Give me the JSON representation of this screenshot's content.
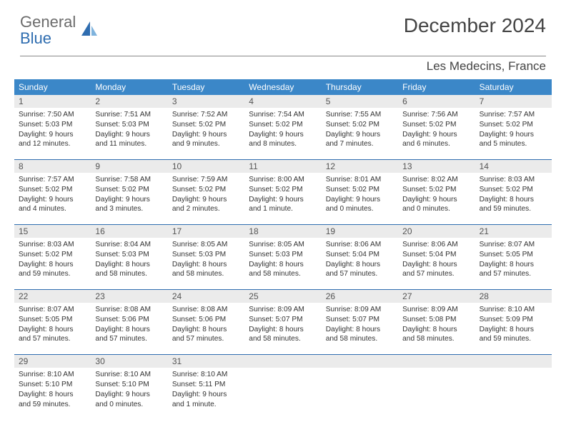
{
  "brand": {
    "general": "General",
    "blue": "Blue"
  },
  "title": "December 2024",
  "location": "Les Medecins, France",
  "colors": {
    "header_bar": "#3b87c8",
    "week_border": "#2f6db0",
    "daynum_bg": "#ebebeb",
    "text": "#333333",
    "logo_grey": "#6b6b6b",
    "logo_blue": "#2f6db0"
  },
  "weekdays": [
    "Sunday",
    "Monday",
    "Tuesday",
    "Wednesday",
    "Thursday",
    "Friday",
    "Saturday"
  ],
  "weeks": [
    [
      {
        "n": "1",
        "sunrise": "Sunrise: 7:50 AM",
        "sunset": "Sunset: 5:03 PM",
        "day1": "Daylight: 9 hours",
        "day2": "and 12 minutes."
      },
      {
        "n": "2",
        "sunrise": "Sunrise: 7:51 AM",
        "sunset": "Sunset: 5:03 PM",
        "day1": "Daylight: 9 hours",
        "day2": "and 11 minutes."
      },
      {
        "n": "3",
        "sunrise": "Sunrise: 7:52 AM",
        "sunset": "Sunset: 5:02 PM",
        "day1": "Daylight: 9 hours",
        "day2": "and 9 minutes."
      },
      {
        "n": "4",
        "sunrise": "Sunrise: 7:54 AM",
        "sunset": "Sunset: 5:02 PM",
        "day1": "Daylight: 9 hours",
        "day2": "and 8 minutes."
      },
      {
        "n": "5",
        "sunrise": "Sunrise: 7:55 AM",
        "sunset": "Sunset: 5:02 PM",
        "day1": "Daylight: 9 hours",
        "day2": "and 7 minutes."
      },
      {
        "n": "6",
        "sunrise": "Sunrise: 7:56 AM",
        "sunset": "Sunset: 5:02 PM",
        "day1": "Daylight: 9 hours",
        "day2": "and 6 minutes."
      },
      {
        "n": "7",
        "sunrise": "Sunrise: 7:57 AM",
        "sunset": "Sunset: 5:02 PM",
        "day1": "Daylight: 9 hours",
        "day2": "and 5 minutes."
      }
    ],
    [
      {
        "n": "8",
        "sunrise": "Sunrise: 7:57 AM",
        "sunset": "Sunset: 5:02 PM",
        "day1": "Daylight: 9 hours",
        "day2": "and 4 minutes."
      },
      {
        "n": "9",
        "sunrise": "Sunrise: 7:58 AM",
        "sunset": "Sunset: 5:02 PM",
        "day1": "Daylight: 9 hours",
        "day2": "and 3 minutes."
      },
      {
        "n": "10",
        "sunrise": "Sunrise: 7:59 AM",
        "sunset": "Sunset: 5:02 PM",
        "day1": "Daylight: 9 hours",
        "day2": "and 2 minutes."
      },
      {
        "n": "11",
        "sunrise": "Sunrise: 8:00 AM",
        "sunset": "Sunset: 5:02 PM",
        "day1": "Daylight: 9 hours",
        "day2": "and 1 minute."
      },
      {
        "n": "12",
        "sunrise": "Sunrise: 8:01 AM",
        "sunset": "Sunset: 5:02 PM",
        "day1": "Daylight: 9 hours",
        "day2": "and 0 minutes."
      },
      {
        "n": "13",
        "sunrise": "Sunrise: 8:02 AM",
        "sunset": "Sunset: 5:02 PM",
        "day1": "Daylight: 9 hours",
        "day2": "and 0 minutes."
      },
      {
        "n": "14",
        "sunrise": "Sunrise: 8:03 AM",
        "sunset": "Sunset: 5:02 PM",
        "day1": "Daylight: 8 hours",
        "day2": "and 59 minutes."
      }
    ],
    [
      {
        "n": "15",
        "sunrise": "Sunrise: 8:03 AM",
        "sunset": "Sunset: 5:02 PM",
        "day1": "Daylight: 8 hours",
        "day2": "and 59 minutes."
      },
      {
        "n": "16",
        "sunrise": "Sunrise: 8:04 AM",
        "sunset": "Sunset: 5:03 PM",
        "day1": "Daylight: 8 hours",
        "day2": "and 58 minutes."
      },
      {
        "n": "17",
        "sunrise": "Sunrise: 8:05 AM",
        "sunset": "Sunset: 5:03 PM",
        "day1": "Daylight: 8 hours",
        "day2": "and 58 minutes."
      },
      {
        "n": "18",
        "sunrise": "Sunrise: 8:05 AM",
        "sunset": "Sunset: 5:03 PM",
        "day1": "Daylight: 8 hours",
        "day2": "and 58 minutes."
      },
      {
        "n": "19",
        "sunrise": "Sunrise: 8:06 AM",
        "sunset": "Sunset: 5:04 PM",
        "day1": "Daylight: 8 hours",
        "day2": "and 57 minutes."
      },
      {
        "n": "20",
        "sunrise": "Sunrise: 8:06 AM",
        "sunset": "Sunset: 5:04 PM",
        "day1": "Daylight: 8 hours",
        "day2": "and 57 minutes."
      },
      {
        "n": "21",
        "sunrise": "Sunrise: 8:07 AM",
        "sunset": "Sunset: 5:05 PM",
        "day1": "Daylight: 8 hours",
        "day2": "and 57 minutes."
      }
    ],
    [
      {
        "n": "22",
        "sunrise": "Sunrise: 8:07 AM",
        "sunset": "Sunset: 5:05 PM",
        "day1": "Daylight: 8 hours",
        "day2": "and 57 minutes."
      },
      {
        "n": "23",
        "sunrise": "Sunrise: 8:08 AM",
        "sunset": "Sunset: 5:06 PM",
        "day1": "Daylight: 8 hours",
        "day2": "and 57 minutes."
      },
      {
        "n": "24",
        "sunrise": "Sunrise: 8:08 AM",
        "sunset": "Sunset: 5:06 PM",
        "day1": "Daylight: 8 hours",
        "day2": "and 57 minutes."
      },
      {
        "n": "25",
        "sunrise": "Sunrise: 8:09 AM",
        "sunset": "Sunset: 5:07 PM",
        "day1": "Daylight: 8 hours",
        "day2": "and 58 minutes."
      },
      {
        "n": "26",
        "sunrise": "Sunrise: 8:09 AM",
        "sunset": "Sunset: 5:07 PM",
        "day1": "Daylight: 8 hours",
        "day2": "and 58 minutes."
      },
      {
        "n": "27",
        "sunrise": "Sunrise: 8:09 AM",
        "sunset": "Sunset: 5:08 PM",
        "day1": "Daylight: 8 hours",
        "day2": "and 58 minutes."
      },
      {
        "n": "28",
        "sunrise": "Sunrise: 8:10 AM",
        "sunset": "Sunset: 5:09 PM",
        "day1": "Daylight: 8 hours",
        "day2": "and 59 minutes."
      }
    ],
    [
      {
        "n": "29",
        "sunrise": "Sunrise: 8:10 AM",
        "sunset": "Sunset: 5:10 PM",
        "day1": "Daylight: 8 hours",
        "day2": "and 59 minutes."
      },
      {
        "n": "30",
        "sunrise": "Sunrise: 8:10 AM",
        "sunset": "Sunset: 5:10 PM",
        "day1": "Daylight: 9 hours",
        "day2": "and 0 minutes."
      },
      {
        "n": "31",
        "sunrise": "Sunrise: 8:10 AM",
        "sunset": "Sunset: 5:11 PM",
        "day1": "Daylight: 9 hours",
        "day2": "and 1 minute."
      },
      null,
      null,
      null,
      null
    ]
  ]
}
